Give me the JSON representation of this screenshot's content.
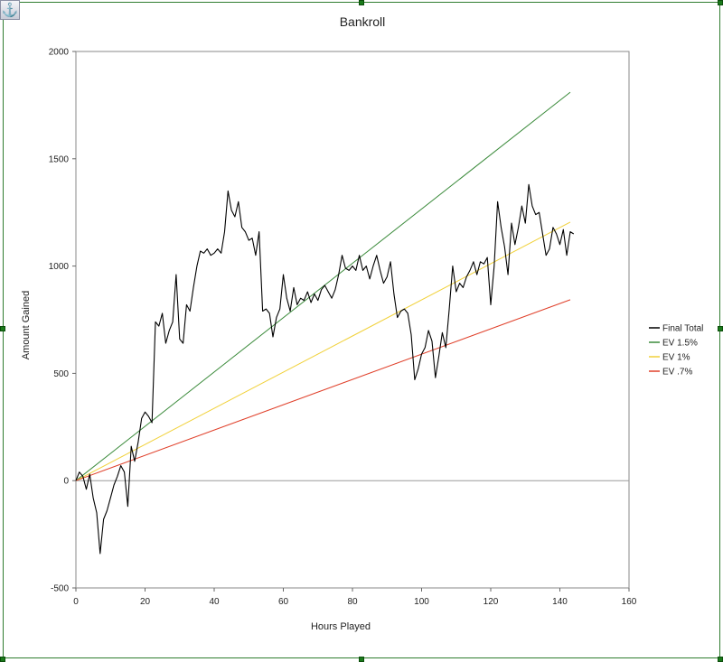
{
  "anchor_icon": "anchor-icon",
  "chart_data": {
    "type": "line",
    "title": "Bankroll",
    "xlabel": "Hours Played",
    "ylabel": "Amount Gained",
    "xlim": [
      0,
      160
    ],
    "ylim": [
      -500,
      2000
    ],
    "xticks": [
      0,
      20,
      40,
      60,
      80,
      100,
      120,
      140,
      160
    ],
    "yticks": [
      -500,
      0,
      500,
      1000,
      1500,
      2000
    ],
    "grid": false,
    "legend_position": "right",
    "series": [
      {
        "name": "Final Total",
        "color": "#000000",
        "x": [
          0,
          1,
          2,
          3,
          4,
          5,
          6,
          7,
          8,
          9,
          10,
          11,
          12,
          13,
          14,
          15,
          16,
          17,
          18,
          19,
          20,
          21,
          22,
          23,
          24,
          25,
          26,
          27,
          28,
          29,
          30,
          31,
          32,
          33,
          34,
          35,
          36,
          37,
          38,
          39,
          40,
          41,
          42,
          43,
          44,
          45,
          46,
          47,
          48,
          49,
          50,
          51,
          52,
          53,
          54,
          55,
          56,
          57,
          58,
          59,
          60,
          61,
          62,
          63,
          64,
          65,
          66,
          67,
          68,
          69,
          70,
          71,
          72,
          73,
          74,
          75,
          76,
          77,
          78,
          79,
          80,
          81,
          82,
          83,
          84,
          85,
          86,
          87,
          88,
          89,
          90,
          91,
          92,
          93,
          94,
          95,
          96,
          97,
          98,
          99,
          100,
          101,
          102,
          103,
          104,
          105,
          106,
          107,
          108,
          109,
          110,
          111,
          112,
          113,
          114,
          115,
          116,
          117,
          118,
          119,
          120,
          121,
          122,
          123,
          124,
          125,
          126,
          127,
          128,
          129,
          130,
          131,
          132,
          133,
          134,
          135,
          136,
          137,
          138,
          139,
          140,
          141,
          142,
          143,
          144
        ],
        "values": [
          0,
          40,
          20,
          -40,
          30,
          -80,
          -150,
          -340,
          -180,
          -140,
          -80,
          -20,
          20,
          70,
          40,
          -120,
          160,
          90,
          180,
          290,
          320,
          300,
          270,
          740,
          720,
          780,
          640,
          700,
          740,
          960,
          660,
          640,
          820,
          790,
          900,
          1000,
          1070,
          1060,
          1080,
          1050,
          1060,
          1080,
          1060,
          1160,
          1350,
          1260,
          1230,
          1300,
          1180,
          1160,
          1120,
          1130,
          1050,
          1160,
          790,
          800,
          780,
          670,
          760,
          800,
          960,
          850,
          790,
          900,
          820,
          850,
          840,
          880,
          830,
          870,
          840,
          890,
          910,
          880,
          850,
          890,
          960,
          1050,
          990,
          980,
          1000,
          980,
          1050,
          980,
          1000,
          940,
          1000,
          1050,
          980,
          920,
          950,
          1020,
          870,
          760,
          790,
          800,
          780,
          680,
          470,
          520,
          590,
          620,
          700,
          650,
          480,
          580,
          690,
          620,
          800,
          1000,
          880,
          920,
          900,
          950,
          980,
          1020,
          960,
          1020,
          1010,
          1040,
          820,
          1000,
          1300,
          1180,
          1090,
          960,
          1200,
          1100,
          1180,
          1280,
          1200,
          1380,
          1280,
          1240,
          1250,
          1150,
          1050,
          1080,
          1180,
          1150,
          1100,
          1170,
          1050,
          1160,
          1150
        ]
      },
      {
        "name": "EV 1.5%",
        "color": "#3a8a3a",
        "x": [
          0,
          143
        ],
        "values": [
          0,
          1810
        ]
      },
      {
        "name": "EV 1%",
        "color": "#f1d13a",
        "x": [
          0,
          143
        ],
        "values": [
          0,
          1205
        ]
      },
      {
        "name": "EV .7%",
        "color": "#e0402a",
        "x": [
          0,
          143
        ],
        "values": [
          0,
          843
        ]
      }
    ]
  }
}
